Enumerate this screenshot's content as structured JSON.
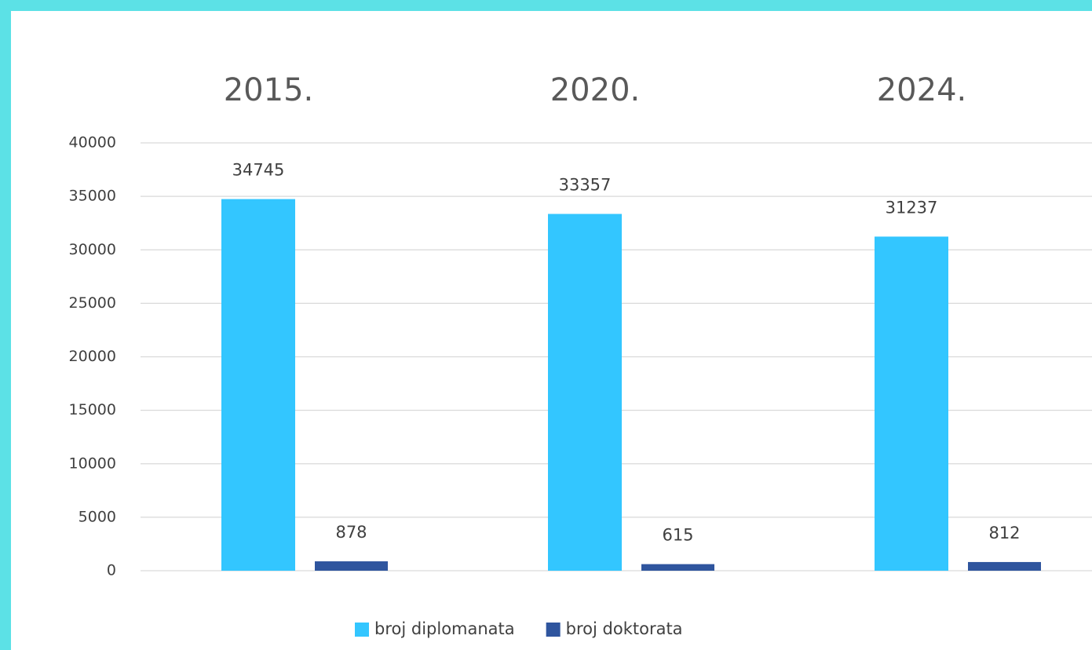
{
  "chart_data": {
    "type": "bar",
    "categories": [
      "2015.",
      "2020.",
      "2024."
    ],
    "series": [
      {
        "name": "broj diplomanata",
        "color": "#33c6ff",
        "values": [
          34745,
          33357,
          31237
        ]
      },
      {
        "name": "broj doktorata",
        "color": "#2f559e",
        "values": [
          878,
          615,
          812
        ]
      }
    ],
    "ylim": [
      0,
      40000
    ],
    "yticks": [
      0,
      5000,
      10000,
      15000,
      20000,
      25000,
      30000,
      35000,
      40000
    ],
    "grid": true,
    "legend": "bottom"
  }
}
